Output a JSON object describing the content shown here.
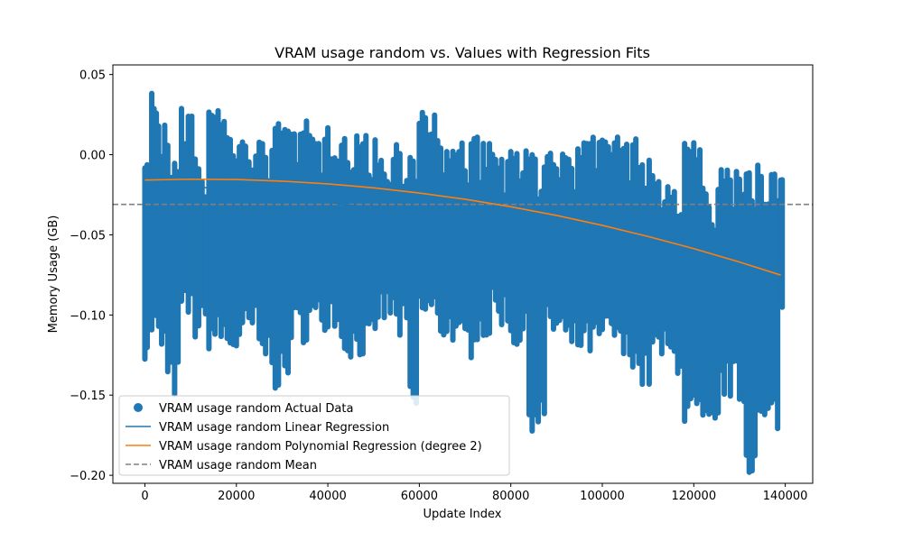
{
  "chart_data": {
    "type": "scatter",
    "title": "VRAM usage random vs. Values with Regression Fits",
    "xlabel": "Update Index",
    "ylabel": "Memory Usage (GB)",
    "xlim": [
      -7000,
      146000
    ],
    "ylim": [
      -0.205,
      0.056
    ],
    "x_ticks": [
      0,
      20000,
      40000,
      60000,
      80000,
      100000,
      120000,
      140000
    ],
    "x_tick_labels": [
      "0",
      "20000",
      "40000",
      "60000",
      "80000",
      "100000",
      "120000",
      "140000"
    ],
    "y_ticks": [
      0.05,
      0.0,
      -0.05,
      -0.1,
      -0.15,
      -0.2
    ],
    "y_tick_labels": [
      "0.05",
      "0.00",
      "−0.05",
      "−0.10",
      "−0.15",
      "−0.20"
    ],
    "grid": false,
    "legend_position": "lower-left",
    "colors": {
      "scatter": "#1f77b4",
      "linear": "#1f77b4",
      "polynomial": "#ff7f0e",
      "mean": "#808080"
    },
    "series": [
      {
        "name": "VRAM usage random Actual Data",
        "kind": "scatter",
        "note": "dense vertical columns of points, approx. range per x",
        "x": [
          0,
          1500,
          3000,
          5000,
          8000,
          11000,
          14000,
          18000,
          22000,
          25000,
          28500,
          32000,
          36000,
          40000,
          43000,
          47000,
          51000,
          55000,
          58000,
          60000,
          64000,
          68000,
          72000,
          76000,
          80000,
          84000,
          88000,
          92000,
          96000,
          100000,
          104000,
          108000,
          111000,
          115000,
          118000,
          122000,
          126000,
          130000,
          131500,
          134000,
          137000,
          139000
        ],
        "y_max": [
          0.0,
          0.045,
          0.02,
          0.01,
          0.034,
          0.0,
          0.029,
          0.012,
          0.011,
          0.01,
          0.02,
          0.021,
          0.014,
          0.025,
          0.012,
          0.013,
          0.0,
          0.01,
          0.0,
          0.028,
          0.009,
          0.008,
          0.011,
          0.004,
          0.003,
          0.0,
          0.006,
          0.006,
          0.014,
          0.013,
          0.01,
          0.0,
          -0.013,
          -0.02,
          0.009,
          -0.02,
          -0.008,
          -0.015,
          -0.01,
          -0.002,
          -0.007,
          -0.012
        ],
        "y_min": [
          -0.12,
          -0.11,
          -0.12,
          -0.145,
          -0.1,
          -0.11,
          -0.115,
          -0.12,
          -0.11,
          -0.125,
          -0.14,
          -0.11,
          -0.105,
          -0.1,
          -0.12,
          -0.12,
          -0.1,
          -0.11,
          -0.16,
          -0.1,
          -0.11,
          -0.12,
          -0.11,
          -0.1,
          -0.115,
          -0.165,
          -0.11,
          -0.12,
          -0.12,
          -0.115,
          -0.125,
          -0.14,
          -0.125,
          -0.13,
          -0.165,
          -0.175,
          -0.145,
          -0.15,
          -0.192,
          -0.17,
          -0.165,
          -0.1
        ]
      },
      {
        "name": "VRAM usage random Linear Regression",
        "kind": "line",
        "x": [
          0,
          139000
        ],
        "y": [
          -0.016,
          -0.064
        ]
      },
      {
        "name": "VRAM usage random Polynomial Regression (degree 2)",
        "kind": "line",
        "x": [
          0,
          10000,
          20000,
          30000,
          40000,
          50000,
          60000,
          70000,
          80000,
          90000,
          100000,
          110000,
          120000,
          130000,
          139000
        ],
        "y": [
          -0.0158,
          -0.0153,
          -0.0155,
          -0.0165,
          -0.0182,
          -0.0207,
          -0.0239,
          -0.0278,
          -0.0325,
          -0.0379,
          -0.0441,
          -0.051,
          -0.0586,
          -0.067,
          -0.0751
        ]
      },
      {
        "name": "VRAM usage random Mean",
        "kind": "hline",
        "y": -0.031
      }
    ]
  }
}
